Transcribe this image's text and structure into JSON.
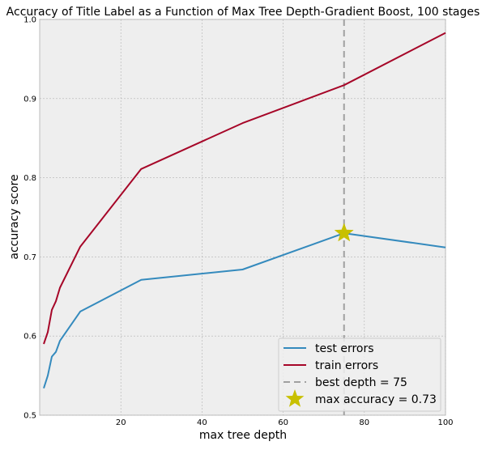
{
  "chart_data": {
    "type": "line",
    "title": "Accuracy of Title Label as a Function of Max Tree Depth-Gradient Boost, 100 stages",
    "xlabel": "max tree depth",
    "ylabel": "accuracy score",
    "xlim": [
      0,
      100
    ],
    "ylim": [
      0.5,
      1.0
    ],
    "xticks": [
      20,
      40,
      60,
      80,
      100
    ],
    "xtick_labels": [
      "20",
      "40",
      "60",
      "80",
      "100"
    ],
    "yticks": [
      0.5,
      0.6,
      0.7,
      0.8,
      0.9,
      1.0
    ],
    "ytick_labels": [
      "0.5",
      "0.6",
      "0.7",
      "0.8",
      "0.9",
      "1.0"
    ],
    "grid": true,
    "legend_position": "bottom-right",
    "series": [
      {
        "name": "test errors",
        "color": "#348ABD",
        "x": [
          1,
          2,
          3,
          4,
          5,
          10,
          25,
          50,
          75,
          100
        ],
        "y": [
          0.534,
          0.55,
          0.574,
          0.58,
          0.594,
          0.631,
          0.671,
          0.684,
          0.73,
          0.712
        ]
      },
      {
        "name": "train errors",
        "color": "#A60628",
        "x": [
          1,
          2,
          3,
          4,
          5,
          10,
          25,
          50,
          75,
          100
        ],
        "y": [
          0.59,
          0.605,
          0.633,
          0.644,
          0.661,
          0.713,
          0.811,
          0.869,
          0.917,
          0.983
        ]
      }
    ],
    "vline": {
      "name": "best depth = 75",
      "x": 75,
      "color": "#A0A0A0"
    },
    "marker": {
      "name": "max accuracy = 0.73",
      "x": 75,
      "y": 0.73,
      "color": "#C8C000"
    }
  }
}
